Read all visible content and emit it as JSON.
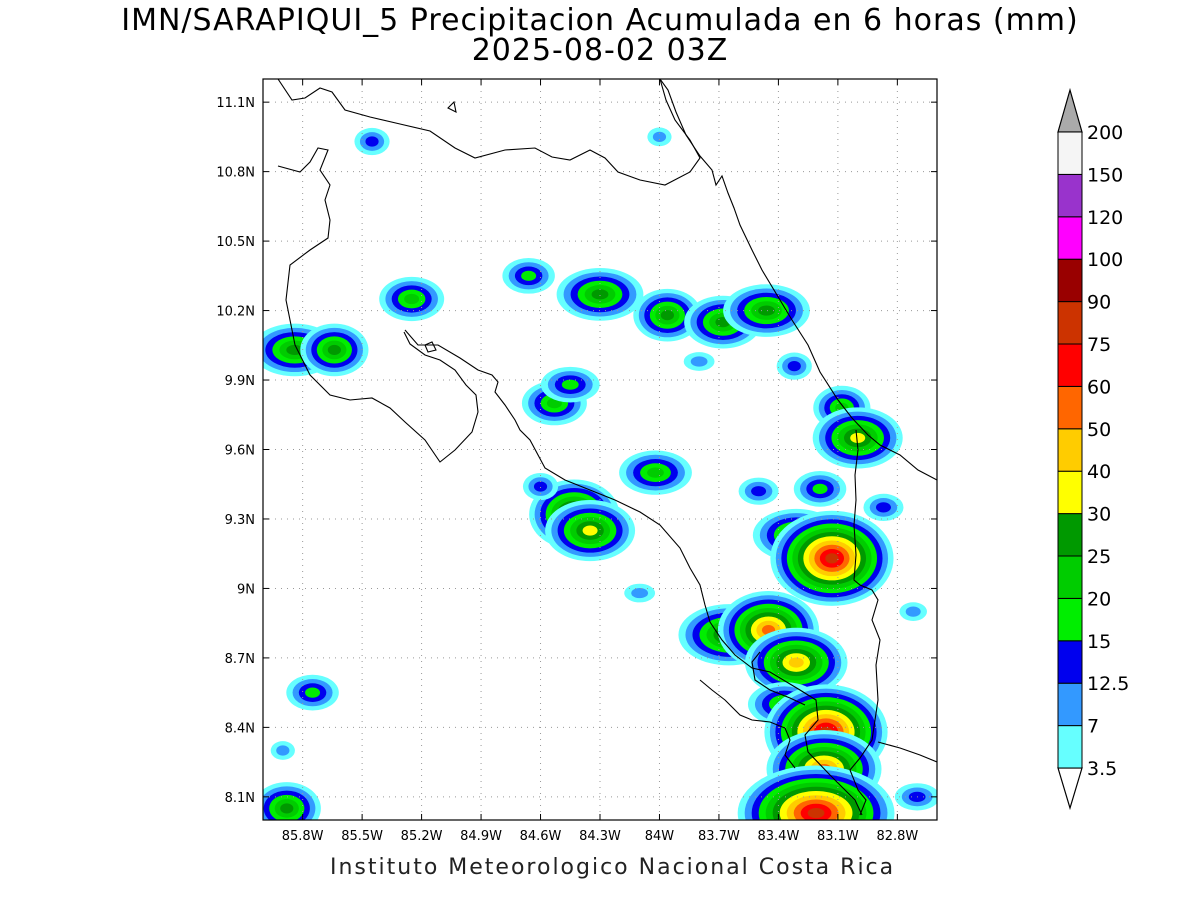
{
  "title_line1": "IMN/SARAPIQUI_5 Precipitacion Acumulada en 6 horas (mm)",
  "title_line2": "2025-08-02 03Z",
  "footer": "Instituto Meteorologico Nacional Costa Rica",
  "map": {
    "lon_range": [
      -86.0,
      -82.6
    ],
    "lat_range": [
      8.0,
      11.2
    ],
    "grid": true,
    "x_ticks": [
      "85.8W",
      "85.5W",
      "85.2W",
      "84.9W",
      "84.6W",
      "84.3W",
      "84W",
      "83.7W",
      "83.4W",
      "83.1W",
      "82.8W"
    ],
    "y_ticks": [
      "11.1N",
      "10.8N",
      "10.5N",
      "10.2N",
      "9.9N",
      "9.6N",
      "9.3N",
      "9N",
      "8.7N",
      "8.4N",
      "8.1N"
    ]
  },
  "colorbar": {
    "labels": [
      "3.5",
      "7",
      "12.5",
      "15",
      "20",
      "25",
      "30",
      "40",
      "50",
      "60",
      "75",
      "90",
      "100",
      "120",
      "150",
      "200"
    ],
    "colors": [
      "#66ffff",
      "#3399ff",
      "#0000ee",
      "#00ee00",
      "#00cc00",
      "#009900",
      "#ffff00",
      "#ffcc00",
      "#ff6600",
      "#ff0000",
      "#cc3300",
      "#990000",
      "#ff00ff",
      "#9933cc",
      "#f5f5f5"
    ],
    "over_color": "#aaaaaa",
    "under_color": "#ffffff"
  },
  "precip_cells": [
    {
      "lon": -85.45,
      "lat": 10.93,
      "level": 2
    },
    {
      "lon": -85.25,
      "lat": 10.25,
      "level": 4
    },
    {
      "lon": -85.84,
      "lat": 10.03,
      "level": 5
    },
    {
      "lon": -85.64,
      "lat": 10.03,
      "level": 5
    },
    {
      "lon": -84.66,
      "lat": 10.35,
      "level": 3
    },
    {
      "lon": -84.3,
      "lat": 10.27,
      "level": 5
    },
    {
      "lon": -83.96,
      "lat": 10.18,
      "level": 5
    },
    {
      "lon": -83.68,
      "lat": 10.15,
      "level": 5
    },
    {
      "lon": -83.46,
      "lat": 10.2,
      "level": 5
    },
    {
      "lon": -83.32,
      "lat": 9.96,
      "level": 2
    },
    {
      "lon": -84.53,
      "lat": 9.8,
      "level": 4
    },
    {
      "lon": -84.45,
      "lat": 9.88,
      "level": 3
    },
    {
      "lon": -83.08,
      "lat": 9.78,
      "level": 4
    },
    {
      "lon": -83.0,
      "lat": 9.65,
      "level": 6
    },
    {
      "lon": -84.02,
      "lat": 9.5,
      "level": 4
    },
    {
      "lon": -84.43,
      "lat": 9.32,
      "level": 7
    },
    {
      "lon": -84.35,
      "lat": 9.25,
      "level": 6
    },
    {
      "lon": -83.31,
      "lat": 9.23,
      "level": 5
    },
    {
      "lon": -83.13,
      "lat": 9.13,
      "level": 10
    },
    {
      "lon": -83.19,
      "lat": 9.43,
      "level": 3
    },
    {
      "lon": -83.65,
      "lat": 8.8,
      "level": 6
    },
    {
      "lon": -83.45,
      "lat": 8.82,
      "level": 8
    },
    {
      "lon": -83.31,
      "lat": 8.68,
      "level": 7
    },
    {
      "lon": -83.37,
      "lat": 8.5,
      "level": 4
    },
    {
      "lon": -83.16,
      "lat": 8.38,
      "level": 10
    },
    {
      "lon": -83.17,
      "lat": 8.22,
      "level": 8
    },
    {
      "lon": -83.21,
      "lat": 8.03,
      "level": 10
    },
    {
      "lon": -85.88,
      "lat": 8.05,
      "level": 5
    },
    {
      "lon": -85.75,
      "lat": 8.55,
      "level": 3
    },
    {
      "lon": -83.8,
      "lat": 9.98,
      "level": 1
    },
    {
      "lon": -84.6,
      "lat": 9.44,
      "level": 2
    },
    {
      "lon": -83.5,
      "lat": 9.42,
      "level": 2
    },
    {
      "lon": -84.1,
      "lat": 8.98,
      "level": 1
    },
    {
      "lon": -85.9,
      "lat": 8.3,
      "level": 1
    },
    {
      "lon": -82.72,
      "lat": 8.9,
      "level": 1
    },
    {
      "lon": -82.7,
      "lat": 8.1,
      "level": 2
    },
    {
      "lon": -84.0,
      "lat": 10.95,
      "level": 1
    },
    {
      "lon": -82.87,
      "lat": 9.35,
      "level": 2
    }
  ]
}
